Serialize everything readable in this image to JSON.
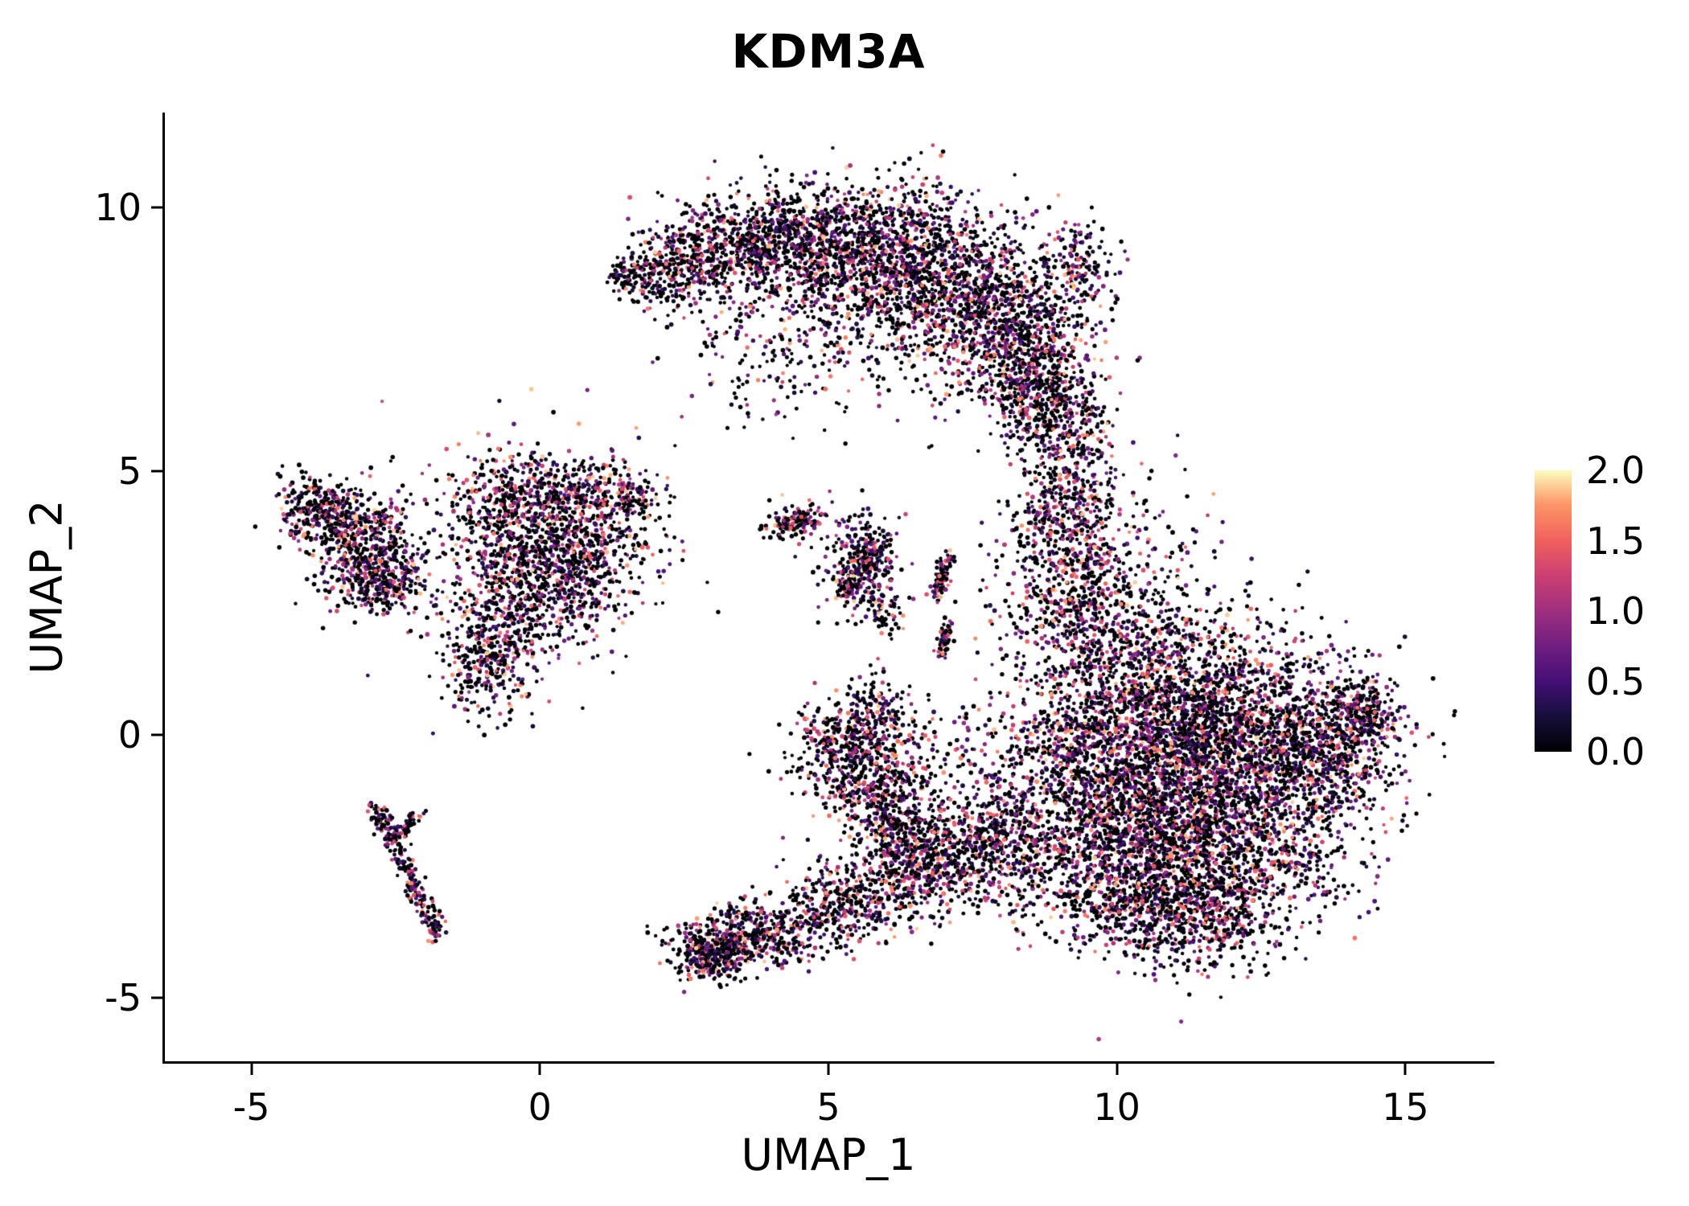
{
  "figure": {
    "title": "KDM3A"
  },
  "chart_data": {
    "type": "scatter",
    "title": "KDM3A",
    "xlabel": "UMAP_1",
    "ylabel": "UMAP_2",
    "grid": false,
    "background": "#ffffff",
    "x_axis": {
      "min": -6.5,
      "max": 16.5,
      "ticks": [
        {
          "value": -5,
          "label": "-5"
        },
        {
          "value": 0,
          "label": "0"
        },
        {
          "value": 5,
          "label": "5"
        },
        {
          "value": 10,
          "label": "10"
        },
        {
          "value": 15,
          "label": "15"
        }
      ]
    },
    "y_axis": {
      "min": -6.2,
      "max": 11.8,
      "ticks": [
        {
          "value": -5,
          "label": "-5"
        },
        {
          "value": 0,
          "label": "0"
        },
        {
          "value": 5,
          "label": "5"
        },
        {
          "value": 10,
          "label": "10"
        }
      ]
    },
    "colorbar": {
      "position": "right",
      "min": 0,
      "max": 2,
      "ticks": [
        {
          "value": 0.0,
          "label": "0.0"
        },
        {
          "value": 0.5,
          "label": "0.5"
        },
        {
          "value": 1.0,
          "label": "1.0"
        },
        {
          "value": 1.5,
          "label": "1.5"
        },
        {
          "value": 2.0,
          "label": "2.0"
        }
      ],
      "stops": [
        {
          "t": 0.0,
          "color": "#000004"
        },
        {
          "t": 0.13,
          "color": "#180f3d"
        },
        {
          "t": 0.25,
          "color": "#440f76"
        },
        {
          "t": 0.38,
          "color": "#721f81"
        },
        {
          "t": 0.5,
          "color": "#9e2f7f"
        },
        {
          "t": 0.63,
          "color": "#cd4071"
        },
        {
          "t": 0.75,
          "color": "#f1605d"
        },
        {
          "t": 0.88,
          "color": "#fd9668"
        },
        {
          "t": 1.0,
          "color": "#fcfdbf"
        }
      ]
    },
    "point_style": {
      "seed": 42,
      "radius_min": 2.1,
      "radius_var": 0.8
    },
    "expression": {
      "zero_fraction": 0.48,
      "min": 0.15,
      "max": 1.9,
      "shape": 1.7
    },
    "clusters": [
      {
        "x": 1.5,
        "y": 8.75,
        "sx": 0.18,
        "sy": 0.15,
        "n": 70
      },
      {
        "x": 2.3,
        "y": 8.8,
        "sx": 0.45,
        "sy": 0.35,
        "n": 260
      },
      {
        "x": 3.3,
        "y": 9.2,
        "sx": 0.7,
        "sy": 0.5,
        "n": 450
      },
      {
        "x": 4.8,
        "y": 9.4,
        "sx": 0.85,
        "sy": 0.55,
        "n": 800
      },
      {
        "x": 6.3,
        "y": 8.9,
        "sx": 0.9,
        "sy": 0.75,
        "n": 1000
      },
      {
        "x": 7.7,
        "y": 8.1,
        "sx": 0.8,
        "sy": 0.8,
        "n": 850
      },
      {
        "x": 8.5,
        "y": 7.0,
        "sx": 0.55,
        "sy": 0.7,
        "n": 550
      },
      {
        "x": 8.9,
        "y": 6.2,
        "sx": 0.4,
        "sy": 0.5,
        "n": 250
      },
      {
        "x": 9.4,
        "y": 8.8,
        "sx": 0.3,
        "sy": 0.5,
        "n": 140
      },
      {
        "x": 4.6,
        "y": 7.9,
        "sx": 1.2,
        "sy": 0.7,
        "n": 220
      },
      {
        "x": 4.3,
        "y": 6.8,
        "sx": 0.8,
        "sy": 0.7,
        "n": 90
      },
      {
        "x": 9.2,
        "y": 4.8,
        "sx": 0.5,
        "sy": 0.9,
        "n": 320
      },
      {
        "x": 9.1,
        "y": 3.2,
        "sx": 0.6,
        "sy": 0.9,
        "n": 380
      },
      {
        "x": 9.6,
        "y": 2.0,
        "sx": 0.7,
        "sy": 0.8,
        "n": 420
      },
      {
        "x": 10.3,
        "y": 3.2,
        "sx": 0.9,
        "sy": 0.9,
        "n": 170
      },
      {
        "x": 11.8,
        "y": 1.6,
        "sx": 1.0,
        "sy": 0.6,
        "n": 150
      },
      {
        "x": 10.9,
        "y": 0.3,
        "sx": 1.1,
        "sy": 0.9,
        "n": 1500
      },
      {
        "x": 12.3,
        "y": -0.4,
        "sx": 1.1,
        "sy": 0.9,
        "n": 1400
      },
      {
        "x": 10.4,
        "y": -1.5,
        "sx": 1.0,
        "sy": 0.9,
        "n": 1100
      },
      {
        "x": 11.9,
        "y": -2.4,
        "sx": 1.1,
        "sy": 0.8,
        "n": 1000
      },
      {
        "x": 13.7,
        "y": -0.3,
        "sx": 0.6,
        "sy": 0.7,
        "n": 450
      },
      {
        "x": 14.2,
        "y": 0.4,
        "sx": 0.3,
        "sy": 0.35,
        "n": 170
      },
      {
        "x": 10.0,
        "y": -3.0,
        "sx": 0.8,
        "sy": 0.6,
        "n": 450
      },
      {
        "x": 11.3,
        "y": -3.4,
        "sx": 0.8,
        "sy": 0.5,
        "n": 380
      },
      {
        "x": 9.3,
        "y": -0.5,
        "sx": 0.7,
        "sy": 1.0,
        "n": 500
      },
      {
        "x": -0.3,
        "y": 4.6,
        "sx": 0.7,
        "sy": 0.45,
        "n": 320
      },
      {
        "x": -0.1,
        "y": 3.5,
        "sx": 0.85,
        "sy": 0.65,
        "n": 620
      },
      {
        "x": 0.6,
        "y": 3.1,
        "sx": 0.55,
        "sy": 0.55,
        "n": 320
      },
      {
        "x": -0.6,
        "y": 2.2,
        "sx": 0.5,
        "sy": 0.55,
        "n": 280
      },
      {
        "x": -0.9,
        "y": 1.2,
        "sx": 0.35,
        "sy": 0.5,
        "n": 230
      },
      {
        "x": 1.0,
        "y": 4.6,
        "sx": 0.55,
        "sy": 0.3,
        "n": 160
      },
      {
        "x": 0.2,
        "y": 3.6,
        "sx": 1.3,
        "sy": 1.1,
        "n": 260
      },
      {
        "x": 1.6,
        "y": 4.5,
        "sx": 0.25,
        "sy": 0.18,
        "n": 70
      },
      {
        "x": -3.6,
        "y": 4.1,
        "sx": 0.4,
        "sy": 0.33,
        "n": 270
      },
      {
        "x": -3.0,
        "y": 3.4,
        "sx": 0.45,
        "sy": 0.5,
        "n": 400
      },
      {
        "x": -2.7,
        "y": 2.9,
        "sx": 0.3,
        "sy": 0.3,
        "n": 180
      },
      {
        "x": -4.0,
        "y": 4.4,
        "sx": 0.25,
        "sy": 0.25,
        "n": 110
      },
      {
        "x": 5.6,
        "y": 3.2,
        "sx": 0.32,
        "sy": 0.5,
        "n": 260
      },
      {
        "x": 4.4,
        "y": 4.0,
        "sx": 0.3,
        "sy": 0.2,
        "n": 80
      },
      {
        "x": 6.0,
        "y": 2.4,
        "sx": 0.18,
        "sy": 0.25,
        "n": 50
      },
      {
        "x": 5.4,
        "y": -0.3,
        "sx": 0.5,
        "sy": 0.5,
        "n": 450
      },
      {
        "x": 5.8,
        "y": 0.4,
        "sx": 0.3,
        "sy": 0.35,
        "n": 140
      },
      {
        "x": 5.9,
        "y": -1.2,
        "sx": 0.4,
        "sy": 0.4,
        "n": 220
      },
      {
        "x": 6.3,
        "y": -1.9,
        "sx": 0.45,
        "sy": 0.45,
        "n": 200
      },
      {
        "x": 7.0,
        "y": -0.8,
        "sx": 0.8,
        "sy": 0.8,
        "n": 200
      },
      {
        "x": 3.2,
        "y": -4.0,
        "sx": 0.5,
        "sy": 0.33,
        "n": 380
      },
      {
        "x": 4.2,
        "y": -3.7,
        "sx": 0.6,
        "sy": 0.3,
        "n": 280
      },
      {
        "x": 5.2,
        "y": -3.2,
        "sx": 0.5,
        "sy": 0.4,
        "n": 260
      },
      {
        "x": 6.2,
        "y": -2.7,
        "sx": 0.5,
        "sy": 0.5,
        "n": 300
      },
      {
        "x": 7.2,
        "y": -2.2,
        "sx": 0.5,
        "sy": 0.5,
        "n": 320
      },
      {
        "x": 8.2,
        "y": -2.0,
        "sx": 0.6,
        "sy": 0.6,
        "n": 380
      },
      {
        "x": 2.9,
        "y": -4.3,
        "sx": 0.25,
        "sy": 0.2,
        "n": 120
      }
    ],
    "streaks": [
      {
        "x1": -2.85,
        "y1": -1.4,
        "x2": -1.75,
        "y2": -3.85,
        "jitter": 0.09,
        "n": 240
      },
      {
        "x1": -2.6,
        "y1": -2.05,
        "x2": -2.1,
        "y2": -1.5,
        "jitter": 0.07,
        "n": 60
      },
      {
        "x1": 6.9,
        "y1": 2.6,
        "x2": 7.05,
        "y2": 3.4,
        "jitter": 0.07,
        "n": 90
      },
      {
        "x1": 6.95,
        "y1": 1.5,
        "x2": 7.05,
        "y2": 2.1,
        "jitter": 0.06,
        "n": 60
      },
      {
        "x1": 5.3,
        "y1": 2.7,
        "x2": 5.9,
        "y2": 3.7,
        "jitter": 0.12,
        "n": 120
      },
      {
        "x1": 4.1,
        "y1": 3.9,
        "x2": 4.7,
        "y2": 4.15,
        "jitter": 0.08,
        "n": 60
      }
    ]
  }
}
